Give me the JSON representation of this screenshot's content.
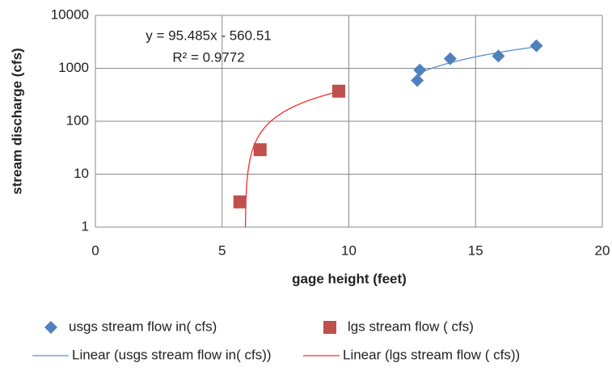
{
  "chart_data": {
    "type": "scatter",
    "x_label": "gage height (feet)",
    "y_label": "stream discharge (cfs)",
    "annotations": [
      "y = 95.485x - 560.51",
      "R² = 0.9772"
    ],
    "xlim": [
      0,
      20
    ],
    "xticks": [
      0,
      5,
      10,
      15,
      20
    ],
    "ylim": [
      1,
      10000
    ],
    "yticks": [
      1,
      10,
      100,
      1000,
      10000
    ],
    "log_y": true,
    "grid": true,
    "legend": "bottom",
    "series": [
      {
        "name": "usgs stream flow in( cfs)",
        "color": "#4f81bd",
        "marker": "diamond",
        "trendline": "linear",
        "trendline_name": "Linear (usgs stream flow in( cfs))",
        "trendline_color": "#5b8fc9",
        "x": [
          12.7,
          12.8,
          14,
          15.9,
          17.4
        ],
        "values": [
          590,
          930,
          1520,
          1700,
          2670
        ]
      },
      {
        "name": "lgs stream flow ( cfs)",
        "color": "#c0504d",
        "marker": "square",
        "trendline": "linear",
        "trendline_name": "Linear (lgs stream flow ( cfs))",
        "trendline_color": "#ff2a2a",
        "x": [
          5.7,
          6.5,
          9.6
        ],
        "values": [
          3,
          29,
          370
        ]
      }
    ]
  }
}
